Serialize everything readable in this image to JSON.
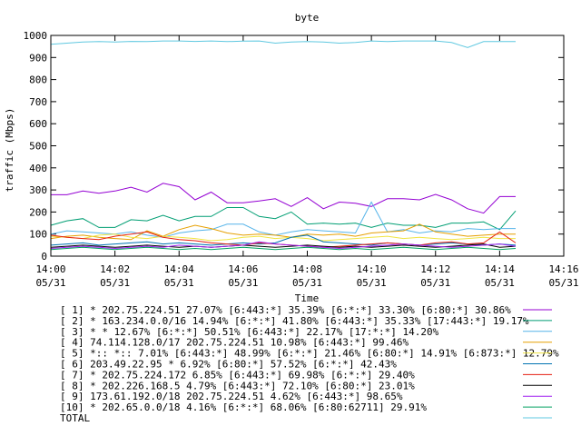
{
  "chart_data": {
    "type": "line",
    "title": "byte",
    "xlabel": "Time",
    "ylabel": "traffic (Mbps)",
    "ylim": [
      0,
      1000
    ],
    "yticks": [
      0,
      100,
      200,
      300,
      400,
      500,
      600,
      700,
      800,
      900,
      1000
    ],
    "xlim": [
      0,
      16
    ],
    "xticks": [
      {
        "t": 0,
        "label1": "14:00",
        "label2": "05/31"
      },
      {
        "t": 2,
        "label1": "14:02",
        "label2": "05/31"
      },
      {
        "t": 4,
        "label1": "14:04",
        "label2": "05/31"
      },
      {
        "t": 6,
        "label1": "14:06",
        "label2": "05/31"
      },
      {
        "t": 8,
        "label1": "14:08",
        "label2": "05/31"
      },
      {
        "t": 10,
        "label1": "14:10",
        "label2": "05/31"
      },
      {
        "t": 12,
        "label1": "14:12",
        "label2": "05/31"
      },
      {
        "t": 14,
        "label1": "14:14",
        "label2": "05/31"
      },
      {
        "t": 16,
        "label1": "14:16",
        "label2": "05/31"
      }
    ],
    "x": [
      0,
      0.5,
      1,
      1.5,
      2,
      2.5,
      3,
      3.5,
      4,
      4.5,
      5,
      5.5,
      6,
      6.5,
      7,
      7.5,
      8,
      8.5,
      9,
      9.5,
      10,
      10.5,
      11,
      11.5,
      12,
      12.5,
      13,
      13.5,
      14,
      14.5
    ],
    "legend_position": "bottom",
    "series": [
      {
        "name": "[ 1] * 202.75.224.51 27.07% [6:443:*] 35.39% [6:*:*] 33.30% [6:80:*] 30.86%",
        "color": "#9400d3",
        "values": [
          278,
          278,
          295,
          285,
          295,
          312,
          290,
          330,
          315,
          255,
          290,
          242,
          242,
          250,
          260,
          225,
          265,
          215,
          245,
          240,
          225,
          260,
          260,
          255,
          280,
          255,
          215,
          195,
          270,
          270
        ]
      },
      {
        "name": "[ 2] * 163.234.0.0/16 14.94% [6:*:*] 41.80% [6:443:*] 35.33% [17:443:*] 19.17%",
        "color": "#009e73",
        "values": [
          140,
          160,
          170,
          130,
          130,
          165,
          160,
          185,
          160,
          180,
          180,
          220,
          220,
          180,
          170,
          200,
          145,
          150,
          145,
          150,
          130,
          150,
          140,
          140,
          130,
          150,
          150,
          155,
          120,
          205
        ]
      },
      {
        "name": "[ 3] * * 12.67% [6:*:*] 50.51% [6:443:*] 22.17% [17:*:*] 14.20%",
        "color": "#56b4e9",
        "values": [
          100,
          115,
          110,
          105,
          100,
          110,
          95,
          85,
          105,
          115,
          120,
          145,
          145,
          110,
          95,
          110,
          120,
          115,
          110,
          105,
          245,
          110,
          120,
          105,
          115,
          110,
          125,
          120,
          125,
          125
        ]
      },
      {
        "name": "[ 4] 74.114.128.0/17 202.75.224.51 10.98% [6:443:*] 99.46%",
        "color": "#e69f00",
        "values": [
          80,
          90,
          95,
          85,
          80,
          75,
          115,
          90,
          120,
          140,
          125,
          105,
          95,
          100,
          95,
          85,
          100,
          95,
          100,
          90,
          105,
          110,
          115,
          145,
          110,
          100,
          90,
          95,
          100,
          100
        ]
      },
      {
        "name": "[ 5] *:: *:: 7.01% [6:443:*] 48.99% [6:*:*] 21.46% [6:80:*] 14.91% [6:873:*] 12.79%",
        "color": "#f0e442",
        "values": [
          90,
          85,
          80,
          95,
          100,
          85,
          80,
          90,
          85,
          80,
          70,
          75,
          85,
          90,
          80,
          85,
          80,
          70,
          75,
          80,
          85,
          90,
          80,
          85,
          80,
          75,
          80,
          85,
          80,
          80
        ]
      },
      {
        "name": "[ 6] 203.49.22.95 * 6.92% [6:80:*] 57.52% [6:*:*] 42.43%",
        "color": "#0072b2",
        "values": [
          50,
          55,
          60,
          50,
          55,
          60,
          65,
          55,
          60,
          55,
          50,
          55,
          60,
          55,
          60,
          85,
          95,
          65,
          60,
          55,
          50,
          60,
          55,
          50,
          55,
          60,
          55,
          50,
          55,
          50
        ]
      },
      {
        "name": "[ 7] * 202.75.224.172 6.85% [6:443:*] 69.98% [6:*:*] 29.40%",
        "color": "#e51e10",
        "values": [
          95,
          85,
          80,
          75,
          90,
          100,
          110,
          85,
          75,
          70,
          60,
          55,
          50,
          60,
          55,
          50,
          45,
          40,
          45,
          50,
          55,
          60,
          55,
          50,
          60,
          65,
          55,
          60,
          110,
          60
        ]
      },
      {
        "name": "[ 8] * 202.226.168.5 4.79% [6:443:*] 72.10% [6:80:*] 23.01%",
        "color": "#000000",
        "values": [
          40,
          45,
          50,
          45,
          40,
          45,
          50,
          45,
          40,
          45,
          40,
          45,
          50,
          45,
          40,
          45,
          50,
          45,
          40,
          45,
          40,
          45,
          50,
          45,
          40,
          45,
          50,
          55,
          40,
          45
        ]
      },
      {
        "name": "[ 9] 173.61.192.0/18 202.75.224.51 4.62% [6:443:*] 98.65%",
        "color": "#a020f0",
        "values": [
          35,
          40,
          45,
          40,
          35,
          40,
          45,
          40,
          50,
          45,
          40,
          45,
          50,
          65,
          55,
          50,
          45,
          40,
          35,
          40,
          45,
          50,
          55,
          50,
          45,
          40,
          45,
          50,
          55,
          45
        ]
      },
      {
        "name": "[10] * 202.65.0.0/18 4.16% [6:*:*] 68.06% [6:80:62711] 29.91%",
        "color": "#00a060",
        "values": [
          30,
          35,
          40,
          35,
          30,
          35,
          40,
          35,
          30,
          35,
          30,
          35,
          40,
          35,
          30,
          35,
          40,
          35,
          30,
          35,
          30,
          35,
          40,
          35,
          30,
          35,
          40,
          35,
          30,
          35
        ]
      },
      {
        "name": "TOTAL",
        "color": "#5fc8e0",
        "values": [
          960,
          965,
          970,
          972,
          970,
          973,
          972,
          975,
          975,
          973,
          975,
          972,
          974,
          975,
          965,
          970,
          972,
          970,
          965,
          968,
          975,
          972,
          975,
          975,
          975,
          968,
          945,
          972,
          972,
          972
        ]
      }
    ]
  }
}
